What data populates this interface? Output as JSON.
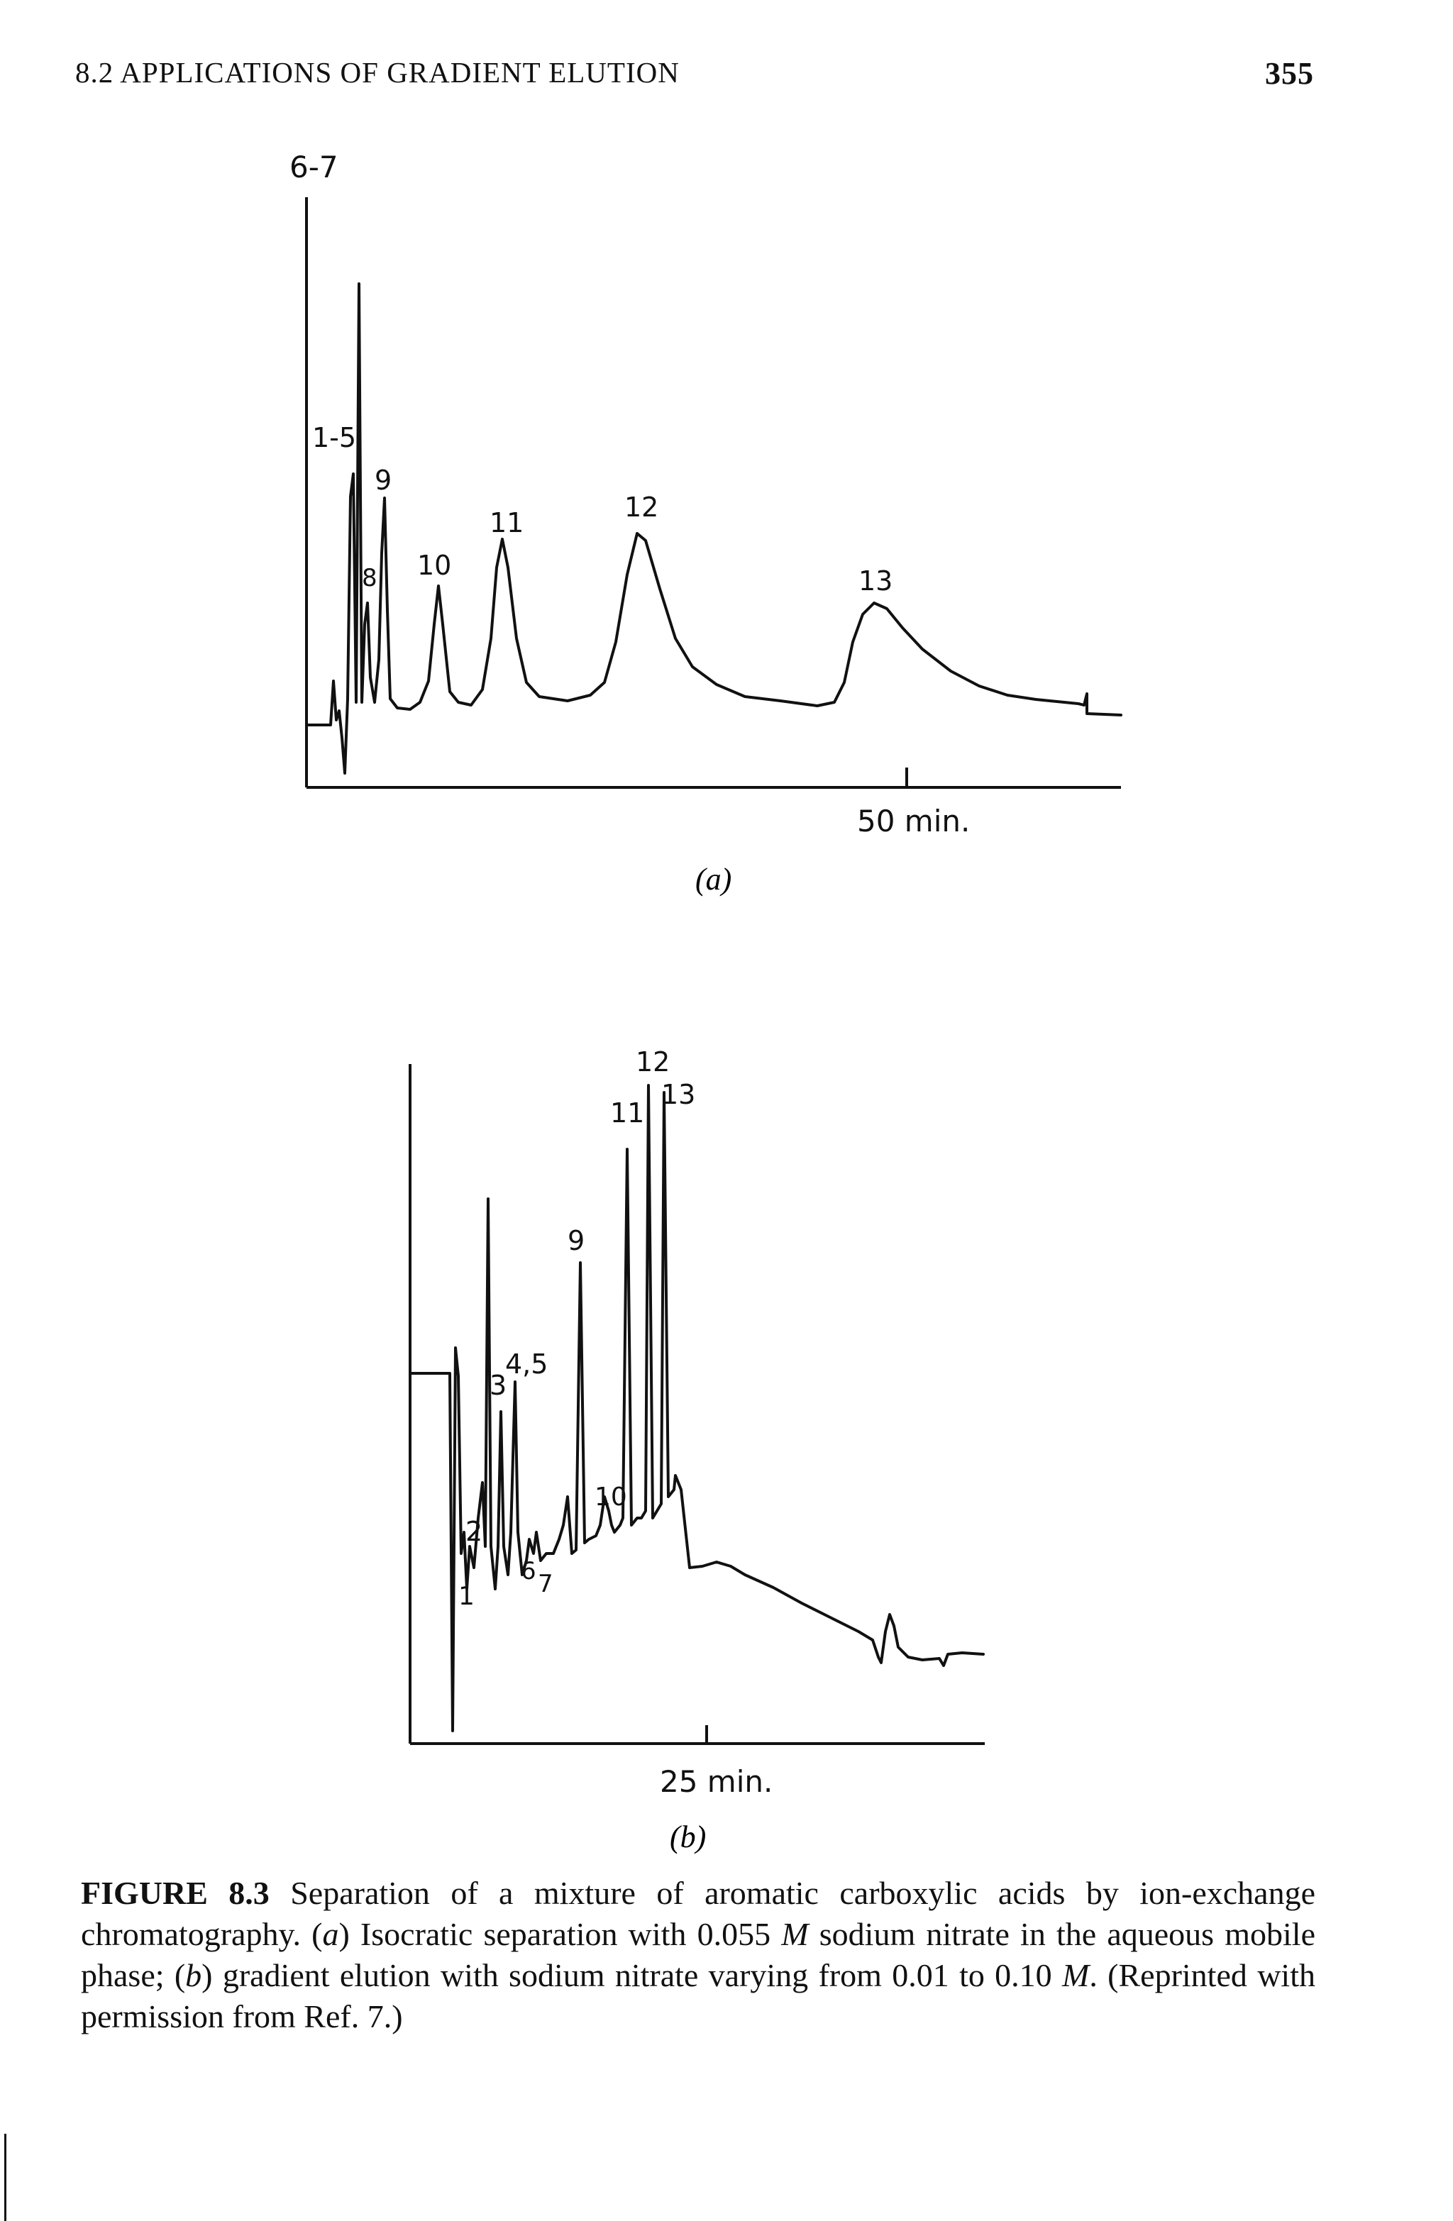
{
  "running_head": {
    "title": "8.2 APPLICATIONS OF GRADIENT ELUTION",
    "page_number": "355"
  },
  "chart_data": [
    {
      "type": "line",
      "panel": "(a)",
      "peak_labels": [
        "6-7",
        "1-5",
        "8",
        "9",
        "10",
        "11",
        "12",
        "13"
      ],
      "x_tick_label": "50 min."
    },
    {
      "type": "line",
      "panel": "(b)",
      "peak_labels": [
        "1",
        "2",
        "3",
        "4,5",
        "6",
        "7",
        "9",
        "10",
        "11",
        "12",
        "13"
      ],
      "x_tick_label": "25 min."
    }
  ],
  "caption": {
    "figure_number": "FIGURE 8.3",
    "text_1": " Separation of a mixture of aromatic carboxylic acids by ion-exchange chromatography. (",
    "label_a": "a",
    "text_2": ") Isocratic separation with 0.055 ",
    "unit_m1": "M",
    "text_3": " sodium nitrate in the aqueous mobile phase; (",
    "label_b": "b",
    "text_4": ") gradient elution with sodium nitrate varying from 0.01 to 0.10 ",
    "unit_m2": "M",
    "text_5": ". (Reprinted with permission from Ref. 7.)"
  }
}
